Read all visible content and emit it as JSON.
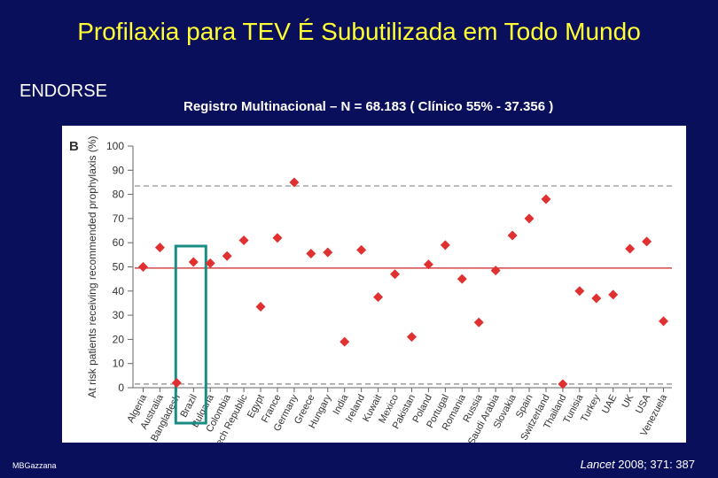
{
  "slide": {
    "title": "Profilaxia para TEV É Subutilizada em Todo Mundo",
    "study": "ENDORSE",
    "registry": "Registro Multinacional – N = 68.183 ( Clínico 55% - 37.356 )",
    "author": "MBGazzana",
    "citation_journal": "Lancet",
    "citation_rest": " 2008; 371: 387"
  },
  "colors": {
    "background": "#0a0f5c",
    "title": "#ffff33",
    "marker": "#e03030",
    "mean_line": "#cc2222",
    "ref_line": "#888888",
    "highlight_box": "#1a8c84",
    "panel": "#ffffff"
  },
  "chart_data": {
    "type": "scatter",
    "panel_label": "B",
    "ylabel": "At risk patients receiving recommended prophylaxis (%)",
    "xlabel": "",
    "ylim": [
      0,
      100
    ],
    "yticks": [
      0,
      10,
      20,
      30,
      40,
      50,
      60,
      70,
      80,
      90,
      100
    ],
    "grid": false,
    "categories": [
      "Algeria",
      "Australia",
      "Bangladesh",
      "Brazil",
      "Bulgaria",
      "Colombia",
      "Czech Republic",
      "Egypt",
      "France",
      "Germany",
      "Greece",
      "Hungary",
      "India",
      "Ireland",
      "Kuwait",
      "Mexico",
      "Pakistan",
      "Poland",
      "Portugal",
      "Romania",
      "Russia",
      "Saudi Arabia",
      "Slovakia",
      "Spain",
      "Switzerland",
      "Thailand",
      "Tunisia",
      "Turkey",
      "UAE",
      "UK",
      "USA",
      "Venezuela"
    ],
    "values": [
      50,
      58,
      2,
      52,
      51.5,
      54.5,
      61,
      33.5,
      62,
      85,
      55.5,
      56,
      19,
      57,
      37.5,
      47,
      21,
      51,
      59,
      45,
      27,
      48.5,
      63,
      70,
      78,
      1.5,
      40,
      37,
      38.5,
      57.5,
      60.5,
      27.5
    ],
    "reference_lines": [
      {
        "y": 83.5,
        "style": "dashed"
      },
      {
        "y": 49.5,
        "style": "solid"
      },
      {
        "y": 1.5,
        "style": "dashed"
      }
    ],
    "highlight": [
      "Brazil"
    ]
  }
}
